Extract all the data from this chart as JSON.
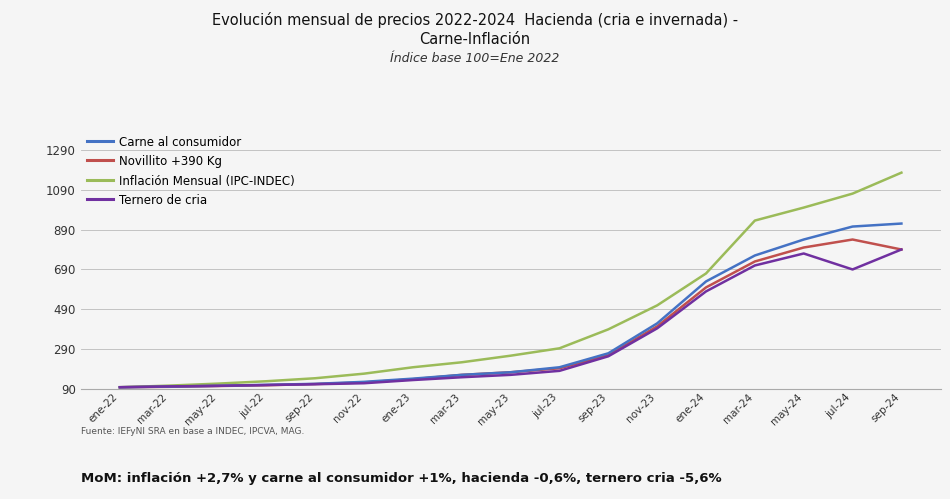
{
  "title_line1": "Evolución mensual de precios 2022-2024  Hacienda (cria e invernada) -",
  "title_line2": "Carne-Inflación",
  "subtitle": "Índice base 100=Ene 2022",
  "source": "Fuente: IEFyNI SRA en base a INDEC, IPCVA, MAG.",
  "footer": "MoM: inflación +2,7% y carne al consumidor +1%, hacienda -0,6%, ternero cria -5,6%",
  "ylim": [
    90,
    1390
  ],
  "yticks": [
    90,
    290,
    490,
    690,
    890,
    1090,
    1290
  ],
  "x_labels": [
    "ene-22",
    "mar-22",
    "may-22",
    "jul-22",
    "sep-22",
    "nov-22",
    "ene-23",
    "mar-23",
    "may-23",
    "jul-23",
    "sep-23",
    "nov-23",
    "ene-24",
    "mar-24",
    "may-24",
    "jul-24",
    "sep-24"
  ],
  "carne": [
    100,
    103,
    107,
    112,
    117,
    127,
    143,
    162,
    175,
    200,
    270,
    420,
    630,
    760,
    840,
    905,
    920
  ],
  "novillito": [
    100,
    102,
    106,
    110,
    116,
    124,
    140,
    162,
    175,
    195,
    260,
    405,
    600,
    730,
    800,
    840,
    790
  ],
  "inflacion": [
    100,
    108,
    118,
    130,
    145,
    168,
    200,
    225,
    258,
    295,
    390,
    510,
    670,
    935,
    1000,
    1070,
    1175
  ],
  "ternero": [
    100,
    104,
    107,
    111,
    115,
    120,
    136,
    150,
    162,
    182,
    255,
    395,
    580,
    710,
    770,
    690,
    790
  ],
  "color_carne": "#4472C4",
  "color_novillito": "#C0504D",
  "color_inflacion": "#9BBB59",
  "color_ternero": "#7030A0",
  "background_color": "#F5F5F5",
  "grid_color": "#BBBBBB",
  "legend_labels": [
    "Carne al consumidor",
    "Novillito +390 Kg",
    "Inflación Mensual (IPC-INDEC)",
    "Ternero de cria"
  ]
}
